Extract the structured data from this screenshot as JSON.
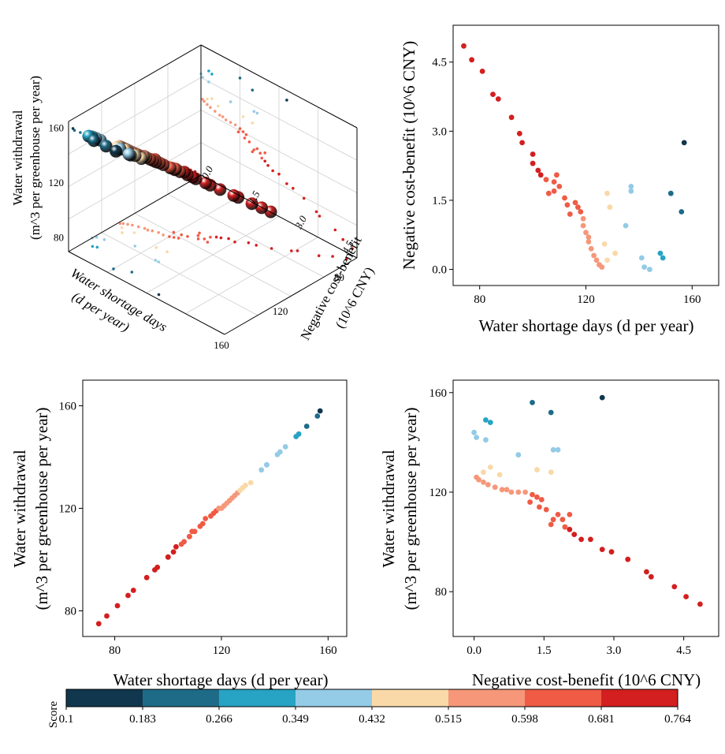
{
  "chart_data": [
    {
      "id": "plot3d",
      "type": "scatter",
      "xlabel_lines": [
        "Water shortage days",
        "(d per year)"
      ],
      "ylabel_lines": [
        "Negative cost-benefit",
        "(10^6 CNY)"
      ],
      "zlabel_lines": [
        "Water withdrawal",
        "(m^3 per greenhouse per year)"
      ],
      "x_ticks": [
        "80",
        "120",
        "160"
      ],
      "y_ticks": [
        "0.0",
        "1.5",
        "3.0",
        "4.5"
      ],
      "z_ticks": [
        "80",
        "120",
        "160"
      ],
      "xlim": [
        70,
        160
      ],
      "ylim": [
        0,
        5.0
      ],
      "zlim": [
        70,
        165
      ]
    },
    {
      "id": "days_vs_cost",
      "type": "scatter",
      "xlabel": "Water shortage days (d per year)",
      "ylabel": "Negative cost-benefit (10^6 CNY)",
      "x_ticks": [
        "80",
        "120",
        "160"
      ],
      "y_ticks": [
        "0.0",
        "1.5",
        "3.0",
        "4.5"
      ],
      "xlim": [
        70,
        170
      ],
      "ylim": [
        -0.35,
        5.3
      ]
    },
    {
      "id": "days_vs_withdrawal",
      "type": "scatter",
      "xlabel": "Water shortage days (d per year)",
      "ylabel_lines": [
        "Water withdrawal",
        "(m^3 per greenhouse per year)"
      ],
      "x_ticks": [
        "80",
        "120",
        "160"
      ],
      "y_ticks": [
        "80",
        "120",
        "160"
      ],
      "xlim": [
        68,
        167
      ],
      "ylim": [
        70,
        170
      ]
    },
    {
      "id": "cost_vs_withdrawal",
      "type": "scatter",
      "xlabel": "Negative cost-benefit (10^6 CNY)",
      "ylabel_lines": [
        "Water withdrawal",
        "(m^3 per greenhouse per year)"
      ],
      "x_ticks": [
        "0.0",
        "1.5",
        "3.0",
        "4.5"
      ],
      "y_ticks": [
        "80",
        "120",
        "160"
      ],
      "xlim": [
        -0.45,
        5.25
      ],
      "ylim": [
        62,
        165
      ]
    }
  ],
  "points": {
    "fields": [
      "days",
      "cost",
      "withdrawal",
      "score"
    ],
    "rows": [
      [
        74,
        4.85,
        75,
        0.76
      ],
      [
        77,
        4.55,
        78,
        0.76
      ],
      [
        81,
        4.3,
        82,
        0.75
      ],
      [
        85,
        3.8,
        86,
        0.74
      ],
      [
        87,
        3.7,
        88,
        0.74
      ],
      [
        92,
        3.3,
        93,
        0.72
      ],
      [
        95,
        2.95,
        96,
        0.71
      ],
      [
        96,
        2.75,
        97,
        0.71
      ],
      [
        100,
        2.5,
        101,
        0.7
      ],
      [
        100,
        2.3,
        101,
        0.7
      ],
      [
        102,
        2.15,
        103,
        0.69
      ],
      [
        103,
        2.05,
        105,
        0.69
      ],
      [
        105,
        1.95,
        106,
        0.68
      ],
      [
        106,
        1.65,
        107,
        0.68
      ],
      [
        108,
        1.7,
        109,
        0.67
      ],
      [
        108,
        1.9,
        109,
        0.66
      ],
      [
        109,
        2.05,
        111,
        0.64
      ],
      [
        110,
        1.8,
        111,
        0.64
      ],
      [
        112,
        1.55,
        113,
        0.62
      ],
      [
        113,
        1.4,
        114,
        0.61
      ],
      [
        114,
        1.2,
        116,
        0.61
      ],
      [
        116,
        1.45,
        117,
        0.61
      ],
      [
        117,
        1.35,
        118,
        0.6
      ],
      [
        118,
        1.25,
        119,
        0.6
      ],
      [
        119,
        1.1,
        120,
        0.59
      ],
      [
        119,
        0.95,
        120,
        0.59
      ],
      [
        120,
        0.8,
        120,
        0.58
      ],
      [
        121,
        0.7,
        121,
        0.58
      ],
      [
        121,
        0.6,
        121,
        0.58
      ],
      [
        122,
        0.45,
        122,
        0.57
      ],
      [
        123,
        0.3,
        123,
        0.56
      ],
      [
        124,
        0.2,
        124,
        0.56
      ],
      [
        125,
        0.1,
        125,
        0.56
      ],
      [
        126,
        0.05,
        126,
        0.55
      ],
      [
        127,
        0.55,
        127,
        0.5
      ],
      [
        128,
        0.2,
        128,
        0.49
      ],
      [
        128,
        1.65,
        128,
        0.48
      ],
      [
        129,
        1.35,
        129,
        0.47
      ],
      [
        131,
        0.35,
        130,
        0.47
      ],
      [
        135,
        0.95,
        135,
        0.4
      ],
      [
        137,
        1.8,
        137,
        0.38
      ],
      [
        137,
        1.7,
        137,
        0.38
      ],
      [
        141,
        0.25,
        141,
        0.37
      ],
      [
        142,
        0.05,
        142,
        0.37
      ],
      [
        144,
        0.0,
        144,
        0.36
      ],
      [
        148,
        0.35,
        148,
        0.33
      ],
      [
        149,
        0.25,
        149,
        0.32
      ],
      [
        152,
        1.65,
        152,
        0.2
      ],
      [
        156,
        1.25,
        156,
        0.2
      ],
      [
        157,
        2.75,
        158,
        0.12
      ]
    ]
  },
  "colorbar": {
    "title": "Score",
    "tick_labels": [
      "0.1",
      "0.183",
      "0.266",
      "0.349",
      "0.432",
      "0.515",
      "0.598",
      "0.681",
      "0.764"
    ],
    "bin_colors": [
      "#10374d",
      "#1e6b88",
      "#27a3c4",
      "#94cbe6",
      "#f9d9a8",
      "#f6977a",
      "#ef5b45",
      "#d31f1f"
    ]
  }
}
